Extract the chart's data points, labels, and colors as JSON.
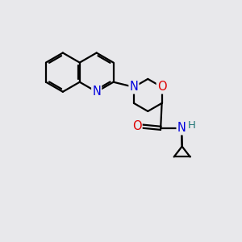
{
  "bg_color": "#e8e8eb",
  "bond_color": "#000000",
  "bond_width": 1.6,
  "dbo": 0.07,
  "atom_colors": {
    "N": "#0000dd",
    "O": "#dd0000",
    "NH": "#227777",
    "C": "#000000"
  },
  "font_size": 10.5
}
